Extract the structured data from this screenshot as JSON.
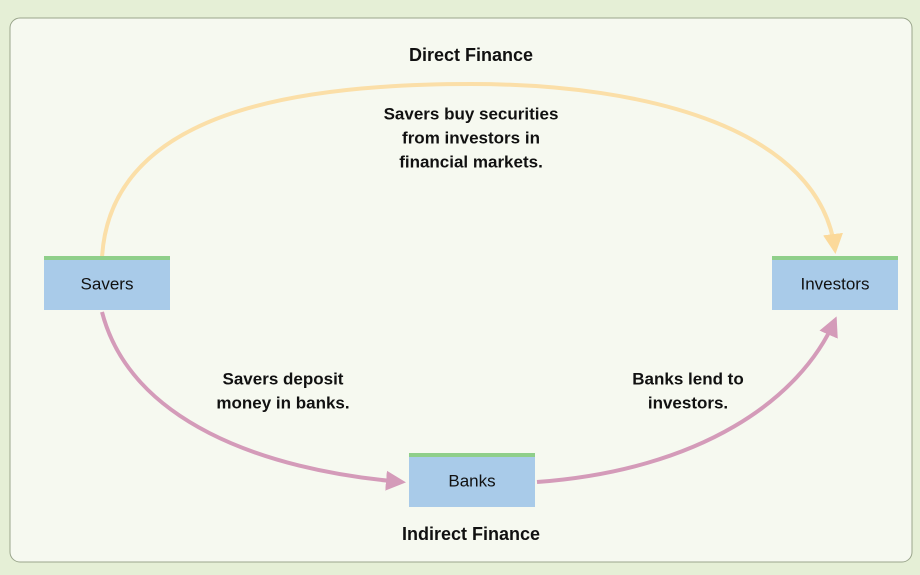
{
  "diagram": {
    "top_label": "Direct Finance",
    "bottom_label": "Indirect Finance",
    "nodes": [
      {
        "label": "Savers"
      },
      {
        "label": "Investors"
      },
      {
        "label": "Banks"
      }
    ],
    "edges": [
      {
        "lines": [
          "Savers buy securities",
          "from investors in",
          "financial markets."
        ]
      },
      {
        "lines": [
          "Savers deposit",
          "money in banks."
        ]
      },
      {
        "lines": [
          "Banks lend to",
          "investors."
        ]
      }
    ]
  }
}
